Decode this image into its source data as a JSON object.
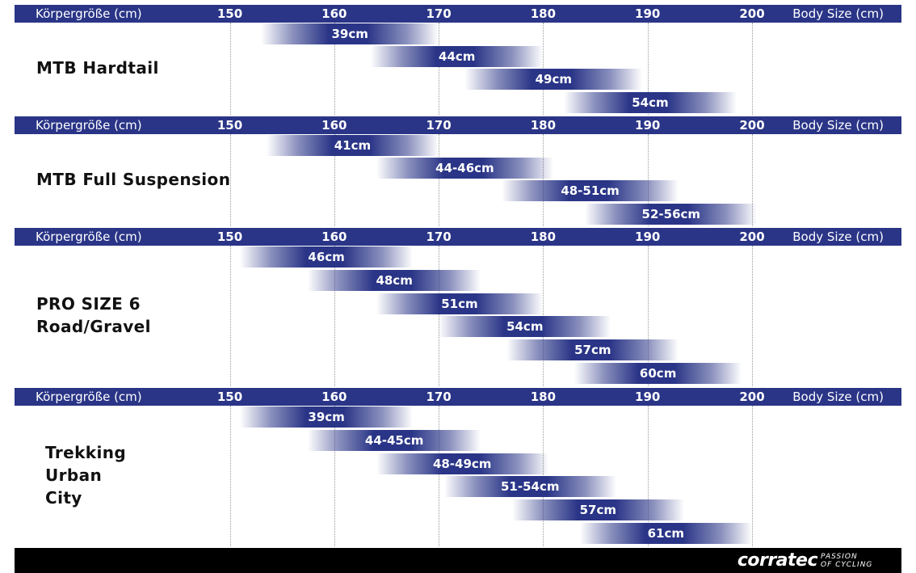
{
  "chart_data": {
    "type": "bar",
    "orientation": "horizontal-range",
    "axis": {
      "label_de": "Körpergröße (cm)",
      "label_en": "Body Size (cm)",
      "ticks": [
        150,
        160,
        170,
        180,
        190,
        200
      ],
      "xlim": [
        129,
        215
      ]
    },
    "grid": true,
    "colors": {
      "bar": "#2a3587",
      "band": "#2a3587",
      "footer": "#000000"
    },
    "groups": [
      {
        "name_lines": [
          "MTB Hardtail"
        ],
        "sizes": [
          {
            "label": "39cm",
            "from": 153,
            "to": 170
          },
          {
            "label": "44cm",
            "from": 163.5,
            "to": 180
          },
          {
            "label": "49cm",
            "from": 172.5,
            "to": 189.5
          },
          {
            "label": "54cm",
            "from": 182,
            "to": 198.5
          }
        ]
      },
      {
        "name_lines": [
          "MTB Full Suspension"
        ],
        "sizes": [
          {
            "label": "41cm",
            "from": 153.5,
            "to": 170
          },
          {
            "label": "44-46cm",
            "from": 164,
            "to": 181
          },
          {
            "label": "48-51cm",
            "from": 176,
            "to": 193
          },
          {
            "label": "52-56cm",
            "from": 184,
            "to": 200.5
          }
        ]
      },
      {
        "name_lines": [
          "PRO SIZE 6",
          "Road/Gravel"
        ],
        "sizes": [
          {
            "label": "46cm",
            "from": 151,
            "to": 167.5
          },
          {
            "label": "48cm",
            "from": 157.5,
            "to": 174
          },
          {
            "label": "51cm",
            "from": 164,
            "to": 180
          },
          {
            "label": "54cm",
            "from": 170,
            "to": 186.5
          },
          {
            "label": "57cm",
            "from": 176.5,
            "to": 193
          },
          {
            "label": "60cm",
            "from": 183,
            "to": 199
          }
        ]
      },
      {
        "name_lines": [
          "Trekking",
          "Urban",
          "City"
        ],
        "sizes": [
          {
            "label": "39cm",
            "from": 151,
            "to": 167.5
          },
          {
            "label": "44-45cm",
            "from": 157.5,
            "to": 174
          },
          {
            "label": "48-49cm",
            "from": 164,
            "to": 180.5
          },
          {
            "label": "51-54cm",
            "from": 170.5,
            "to": 187
          },
          {
            "label": "57cm",
            "from": 177,
            "to": 193.5
          },
          {
            "label": "61cm",
            "from": 183.5,
            "to": 200
          }
        ]
      }
    ]
  },
  "footer": {
    "brand": "corratec",
    "tagline_lines": [
      "PASSION",
      "OF CYCLING"
    ]
  }
}
